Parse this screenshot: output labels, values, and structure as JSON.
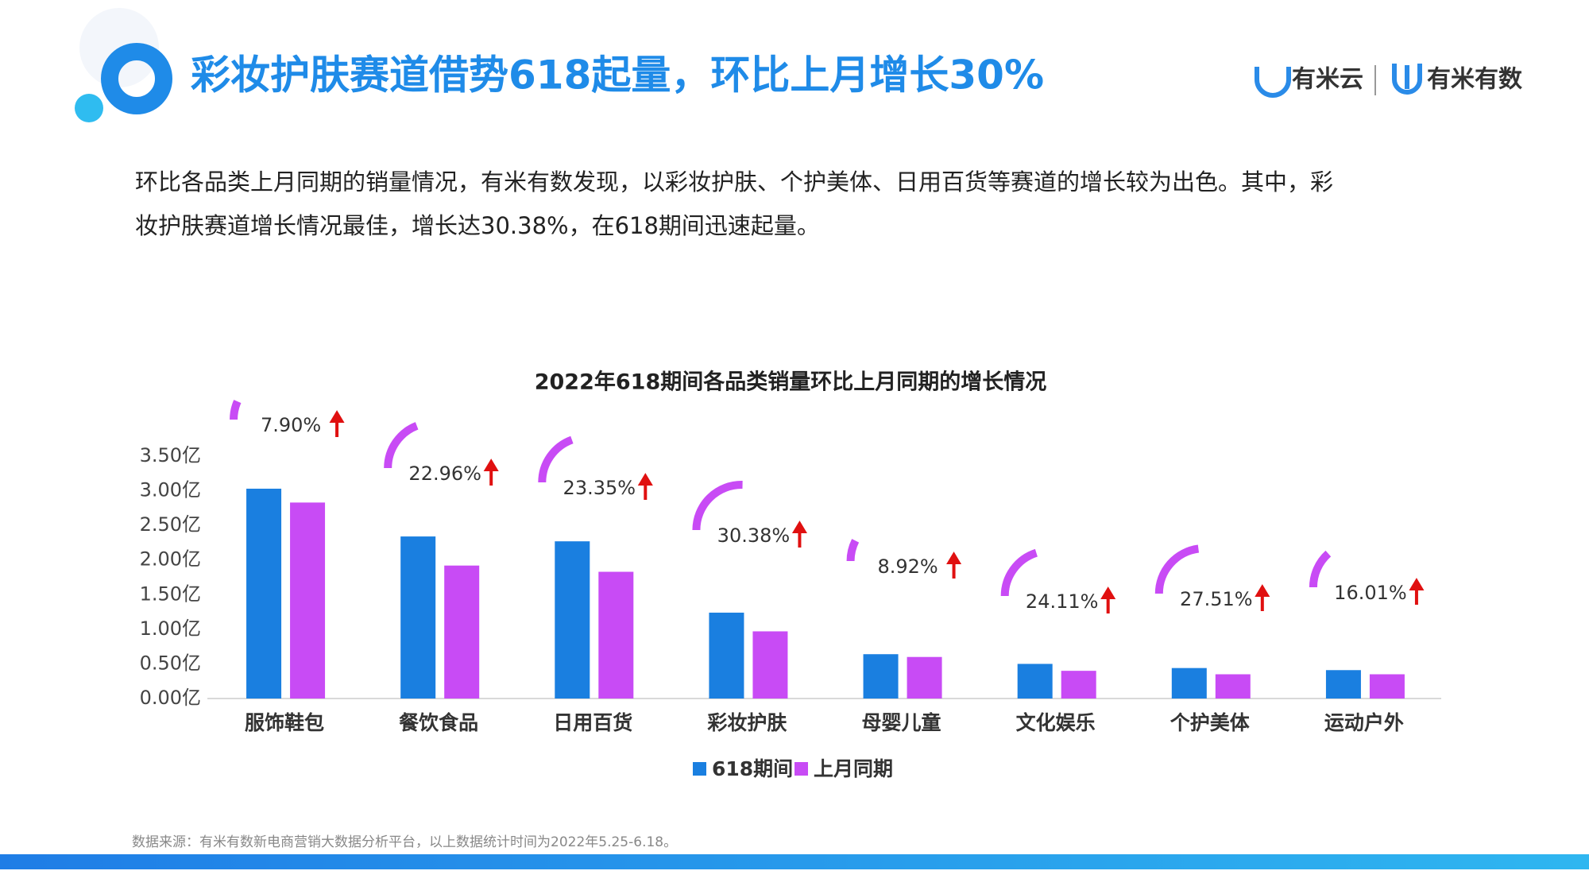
{
  "header": {
    "title": "彩妆护肤赛道借势618起量，环比上月增长30%",
    "logos": [
      "有米云",
      "有米有数"
    ]
  },
  "paragraph": [
    "环比各品类上月同期的销量情况，有米有数发现，以彩妆护肤、个护美体、日用百货等赛道的增长较为出色。其中，彩",
    "妆护肤赛道增长情况最佳，增长达30.38%，在618期间迅速起量。"
  ],
  "chart_data": {
    "type": "bar",
    "title": "2022年618期间各品类销量环比上月同期的增长情况",
    "categories": [
      "服饰鞋包",
      "餐饮食品",
      "日用百货",
      "彩妆护肤",
      "母婴儿童",
      "文化娱乐",
      "个护美体",
      "运动户外"
    ],
    "series": [
      {
        "name": "618期间",
        "color": "#1a7fe0",
        "values": [
          3.03,
          2.34,
          2.27,
          1.24,
          0.64,
          0.5,
          0.44,
          0.41
        ]
      },
      {
        "name": "上月同期",
        "color": "#c84bf5",
        "values": [
          2.83,
          1.92,
          1.83,
          0.97,
          0.6,
          0.4,
          0.35,
          0.35
        ]
      }
    ],
    "growth": {
      "color": "#c84bf5",
      "values": [
        7.9,
        22.96,
        23.35,
        30.38,
        8.92,
        24.11,
        27.51,
        16.01
      ],
      "value_labels": [
        "7.90%",
        "22.96%",
        "23.35%",
        "30.38%",
        "8.92%",
        "24.11%",
        "27.51%",
        "16.01%"
      ]
    },
    "ylim": [
      0,
      3.5
    ],
    "yticks": [
      {
        "value": 0,
        "label": "0.00亿"
      },
      {
        "value": 0.5,
        "label": "0.50亿"
      },
      {
        "value": 1,
        "label": "1.00亿"
      },
      {
        "value": 1.5,
        "label": "1.50亿"
      },
      {
        "value": 2,
        "label": "2.00亿"
      },
      {
        "value": 2.5,
        "label": "2.50亿"
      },
      {
        "value": 3,
        "label": "3.00亿"
      },
      {
        "value": 3.5,
        "label": "3.50亿"
      }
    ],
    "grid": false,
    "legend": "bottom"
  },
  "source": "数据来源：有米有数新电商营销大数据分析平台，以上数据统计时间为2022年5.25-6.18。"
}
